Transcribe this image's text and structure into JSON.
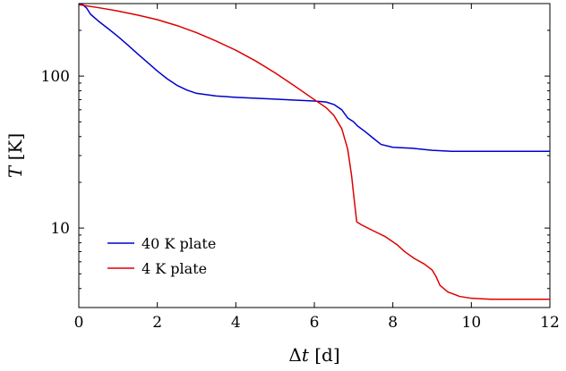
{
  "chart_data": {
    "type": "line",
    "title": "",
    "xlabel_parts": [
      "Δ",
      "t",
      " [d]"
    ],
    "ylabel_parts": [
      "T",
      " [K]"
    ],
    "x_range": [
      0,
      12
    ],
    "y_range": [
      3,
      300
    ],
    "y_scale": "log",
    "x_ticks": [
      {
        "value": 0,
        "label": "0"
      },
      {
        "value": 2,
        "label": "2"
      },
      {
        "value": 4,
        "label": "4"
      },
      {
        "value": 6,
        "label": "6"
      },
      {
        "value": 8,
        "label": "8"
      },
      {
        "value": 10,
        "label": "10"
      },
      {
        "value": 12,
        "label": "12"
      }
    ],
    "y_ticks": [
      {
        "value": 10,
        "label": "10"
      },
      {
        "value": 100,
        "label": "100"
      }
    ],
    "grid": false,
    "legend_position": "bottom-left",
    "series": [
      {
        "name": "40 K plate",
        "color": "#0000cc",
        "points": [
          [
            0,
            295
          ],
          [
            0.1,
            295
          ],
          [
            0.2,
            280
          ],
          [
            0.3,
            255
          ],
          [
            0.5,
            230
          ],
          [
            0.75,
            205
          ],
          [
            1.0,
            182
          ],
          [
            1.25,
            160
          ],
          [
            1.5,
            140
          ],
          [
            1.75,
            123
          ],
          [
            2.0,
            108
          ],
          [
            2.25,
            96
          ],
          [
            2.5,
            87
          ],
          [
            2.75,
            81
          ],
          [
            3.0,
            77
          ],
          [
            3.5,
            74
          ],
          [
            4.0,
            72.5
          ],
          [
            4.5,
            71.5
          ],
          [
            5.0,
            70.5
          ],
          [
            5.5,
            69.5
          ],
          [
            6.0,
            68.5
          ],
          [
            6.3,
            67.5
          ],
          [
            6.5,
            65
          ],
          [
            6.7,
            60
          ],
          [
            6.85,
            53
          ],
          [
            7.0,
            50
          ],
          [
            7.1,
            47
          ],
          [
            7.3,
            43
          ],
          [
            7.5,
            39
          ],
          [
            7.7,
            35.5
          ],
          [
            8.0,
            34
          ],
          [
            8.5,
            33.5
          ],
          [
            9.0,
            32.5
          ],
          [
            9.5,
            32
          ],
          [
            10.0,
            32
          ],
          [
            10.5,
            32
          ],
          [
            11,
            32
          ],
          [
            12,
            32
          ]
        ]
      },
      {
        "name": "4 K plate",
        "color": "#dd0000",
        "points": [
          [
            0,
            295
          ],
          [
            0.5,
            282
          ],
          [
            1.0,
            268
          ],
          [
            1.5,
            252
          ],
          [
            2.0,
            235
          ],
          [
            2.5,
            215
          ],
          [
            3.0,
            193
          ],
          [
            3.5,
            170
          ],
          [
            4.0,
            148
          ],
          [
            4.5,
            126
          ],
          [
            5.0,
            105
          ],
          [
            5.5,
            86
          ],
          [
            6.0,
            70
          ],
          [
            6.3,
            62
          ],
          [
            6.5,
            55
          ],
          [
            6.7,
            45
          ],
          [
            6.85,
            33
          ],
          [
            6.95,
            22
          ],
          [
            7.02,
            15
          ],
          [
            7.08,
            11
          ],
          [
            7.2,
            10.5
          ],
          [
            7.5,
            9.6
          ],
          [
            7.8,
            8.8
          ],
          [
            8.1,
            7.8
          ],
          [
            8.3,
            7.0
          ],
          [
            8.55,
            6.3
          ],
          [
            8.8,
            5.8
          ],
          [
            9.0,
            5.3
          ],
          [
            9.1,
            4.8
          ],
          [
            9.2,
            4.2
          ],
          [
            9.4,
            3.8
          ],
          [
            9.7,
            3.55
          ],
          [
            10.0,
            3.45
          ],
          [
            10.5,
            3.4
          ],
          [
            11,
            3.4
          ],
          [
            12,
            3.4
          ]
        ]
      }
    ]
  }
}
